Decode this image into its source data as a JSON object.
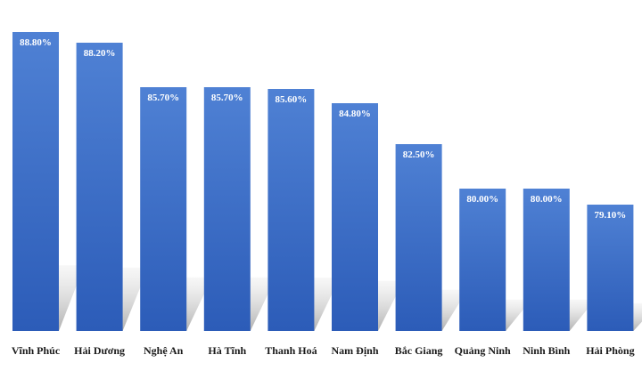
{
  "chart_data": {
    "type": "bar",
    "title": "",
    "xlabel": "",
    "ylabel": "",
    "categories": [
      "Vĩnh Phúc",
      "Hải Dương",
      "Nghệ An",
      "Hà Tĩnh",
      "Thanh Hoá",
      "Nam Định",
      "Bắc Giang",
      "Quảng Ninh",
      "Ninh Bình",
      "Hải Phòng"
    ],
    "values": [
      88.8,
      88.2,
      85.7,
      85.7,
      85.6,
      84.8,
      82.5,
      80.0,
      80.0,
      79.1
    ],
    "value_labels": [
      "88.80%",
      "88.20%",
      "85.70%",
      "85.70%",
      "85.60%",
      "84.80%",
      "82.50%",
      "80.00%",
      "80.00%",
      "79.10%"
    ],
    "ylim": [
      72,
      89.5
    ],
    "grid": false,
    "legend": "none",
    "colors": {
      "bar_top": "#4f81d4",
      "bar_bottom": "#2c5cb8",
      "shadow": "#bdbdbd",
      "label": "#ffffff"
    }
  }
}
